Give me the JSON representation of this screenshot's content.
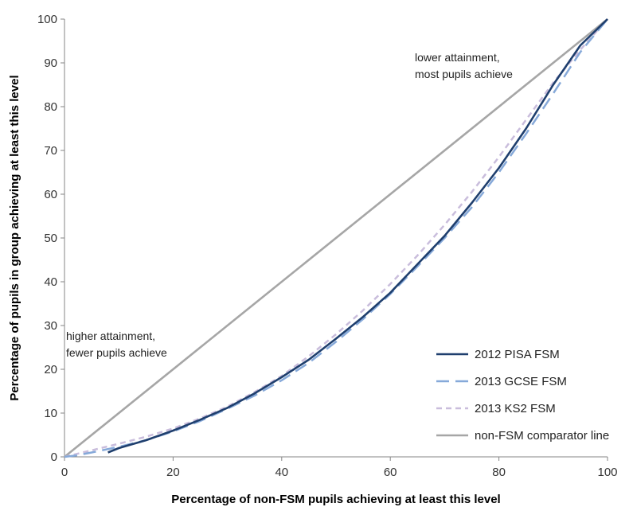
{
  "chart_data": {
    "type": "line",
    "title": "",
    "xlabel": "Percentage of non-FSM pupils achieving at least this level",
    "ylabel": "Percentage of pupils in group achieving at least this level",
    "xlim": [
      0,
      100
    ],
    "ylim": [
      0,
      100
    ],
    "xticks": [
      "0",
      "20",
      "40",
      "60",
      "80",
      "100"
    ],
    "yticks": [
      "0",
      "10",
      "20",
      "30",
      "40",
      "50",
      "60",
      "70",
      "80",
      "90",
      "100"
    ],
    "grid": false,
    "legend_position": "bottom-right",
    "annotations": [
      {
        "lines": [
          "lower attainment,",
          "most pupils achieve"
        ]
      },
      {
        "lines": [
          "higher attainment,",
          "fewer pupils achieve"
        ]
      }
    ],
    "series": [
      {
        "name": "2012 PISA FSM",
        "color": "#1f3f6e",
        "dash": "solid",
        "points": [
          [
            8,
            1
          ],
          [
            10,
            2
          ],
          [
            15,
            3.8
          ],
          [
            20,
            6
          ],
          [
            25,
            8.5
          ],
          [
            30,
            11.2
          ],
          [
            35,
            14.5
          ],
          [
            40,
            18.2
          ],
          [
            45,
            22.2
          ],
          [
            50,
            27
          ],
          [
            55,
            32
          ],
          [
            60,
            37.5
          ],
          [
            65,
            44
          ],
          [
            70,
            50.5
          ],
          [
            75,
            58
          ],
          [
            80,
            66
          ],
          [
            85,
            75
          ],
          [
            90,
            85
          ],
          [
            95,
            94
          ],
          [
            100,
            100
          ]
        ]
      },
      {
        "name": "2013 GCSE FSM",
        "color": "#86a9d9",
        "dash": "long-dash",
        "points": [
          [
            0,
            0
          ],
          [
            2,
            0.3
          ],
          [
            5,
            1
          ],
          [
            10,
            2.3
          ],
          [
            15,
            3.8
          ],
          [
            20,
            5.8
          ],
          [
            25,
            8.2
          ],
          [
            30,
            11
          ],
          [
            35,
            14
          ],
          [
            40,
            17.5
          ],
          [
            45,
            21.5
          ],
          [
            50,
            26.3
          ],
          [
            55,
            31.5
          ],
          [
            60,
            37.2
          ],
          [
            65,
            43.5
          ],
          [
            70,
            50
          ],
          [
            75,
            57
          ],
          [
            80,
            65
          ],
          [
            85,
            73.8
          ],
          [
            90,
            83
          ],
          [
            95,
            92.5
          ],
          [
            100,
            100
          ]
        ]
      },
      {
        "name": "2013 KS2 FSM",
        "color": "#c9bddc",
        "dash": "short-dash",
        "points": [
          [
            0,
            0
          ],
          [
            5,
            1.5
          ],
          [
            10,
            3
          ],
          [
            15,
            4.6
          ],
          [
            20,
            6.5
          ],
          [
            25,
            8.8
          ],
          [
            30,
            11.5
          ],
          [
            35,
            14.8
          ],
          [
            40,
            18.5
          ],
          [
            45,
            23
          ],
          [
            50,
            28
          ],
          [
            55,
            33.5
          ],
          [
            60,
            39.5
          ],
          [
            65,
            46
          ],
          [
            70,
            53
          ],
          [
            75,
            60.5
          ],
          [
            80,
            68.5
          ],
          [
            85,
            77
          ],
          [
            90,
            85.5
          ],
          [
            95,
            93
          ],
          [
            100,
            100
          ]
        ]
      },
      {
        "name": "non-FSM comparator line",
        "color": "#a6a6a6",
        "dash": "solid",
        "points": [
          [
            0,
            0
          ],
          [
            100,
            100
          ]
        ]
      }
    ]
  }
}
